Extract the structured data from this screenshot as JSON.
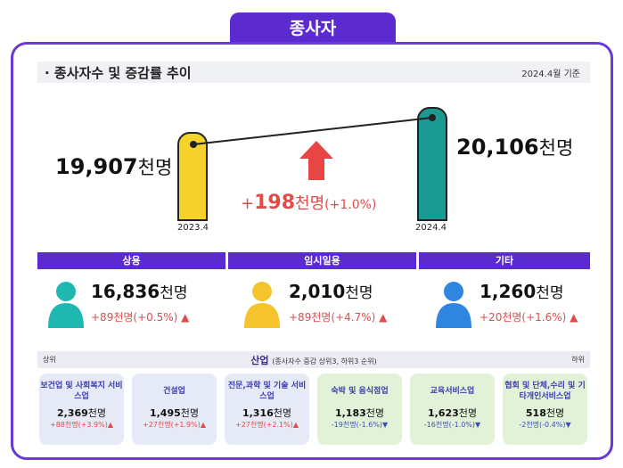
{
  "tab_title": "종사자",
  "section_title": "· 종사자수 및 증감률 추이",
  "base_date": "2024.4월 기준",
  "prev": {
    "value": "19,907",
    "unit": "천명",
    "date": "2023.4"
  },
  "curr": {
    "value": "20,106",
    "unit": "천명",
    "date": "2024.4"
  },
  "delta": {
    "prefix": "+",
    "value": "198",
    "unit": "천명",
    "pct": "(+1.0%)"
  },
  "categories": [
    {
      "label": "상용",
      "value": "16,836",
      "unit": "천명",
      "delta": "+89",
      "delta_unit": "천명",
      "pct": "(+0.5%)",
      "color": "#1fb8b0"
    },
    {
      "label": "임시일용",
      "value": "2,010",
      "unit": "천명",
      "delta": "+89",
      "delta_unit": "천명",
      "pct": "(+4.7%)",
      "color": "#f5c32c"
    },
    {
      "label": "기타",
      "value": "1,260",
      "unit": "천명",
      "delta": "+20",
      "delta_unit": "천명",
      "pct": "(+1.6%)",
      "color": "#2f86e0"
    }
  ],
  "industry": {
    "title": "산업",
    "subtitle": "(종사자수 증감 상위3, 하위3 순위)",
    "left_label": "상위",
    "right_label": "하위",
    "items": [
      {
        "name": "보건업 및 사회복지 서비스업",
        "value": "2,369",
        "unit": "천명",
        "change": "+88천명(+3.9%)",
        "dir": "up"
      },
      {
        "name": "건설업",
        "value": "1,495",
        "unit": "천명",
        "change": "+27천명(+1.9%)",
        "dir": "up"
      },
      {
        "name": "전문,과학 및 기술 서비스업",
        "value": "1,316",
        "unit": "천명",
        "change": "+27천명(+2.1%)",
        "dir": "up"
      },
      {
        "name": "숙박 및 음식점업",
        "value": "1,183",
        "unit": "천명",
        "change": "-19천명(-1.6%)",
        "dir": "down"
      },
      {
        "name": "교육서비스업",
        "value": "1,623",
        "unit": "천명",
        "change": "-16천명(-1.0%)",
        "dir": "down"
      },
      {
        "name": "협회 및 단체,수리 및 기타개인서비스업",
        "value": "518",
        "unit": "천명",
        "change": "-2천명(-0.4%)",
        "dir": "down"
      }
    ]
  },
  "colors": {
    "accent": "#5b2bd0",
    "up": "#e34b4b",
    "down": "#3b4fb8",
    "pill_prev": "#f5d32c",
    "pill_curr": "#1a9a92"
  }
}
